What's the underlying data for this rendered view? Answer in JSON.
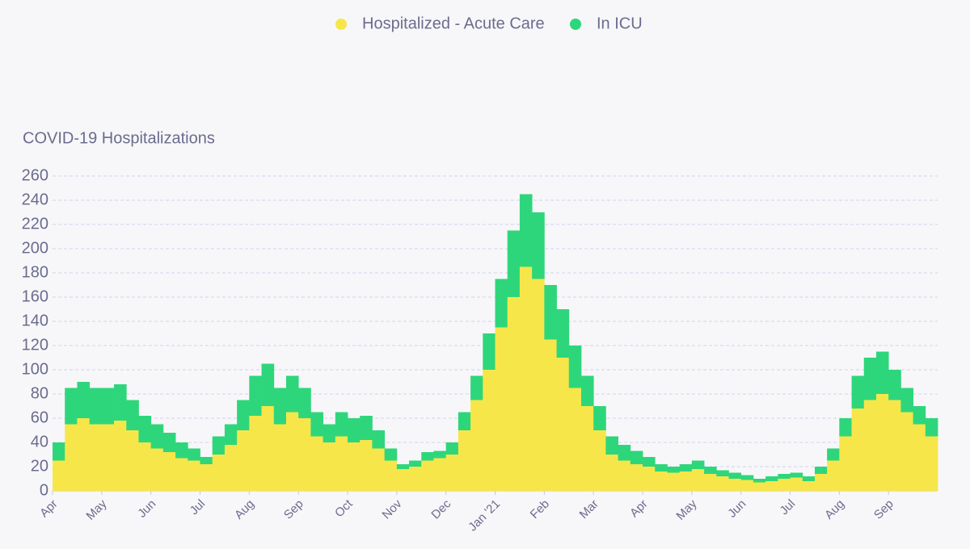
{
  "chart_data": {
    "type": "stacked_bar",
    "title": "COVID-19 Hospitalizations",
    "categories": [
      "Apr",
      null,
      null,
      null,
      "May",
      null,
      null,
      null,
      "Jun",
      null,
      null,
      null,
      "Jul",
      null,
      null,
      null,
      "Aug",
      null,
      null,
      null,
      "Sep",
      null,
      null,
      null,
      "Oct",
      null,
      null,
      null,
      "Nov",
      null,
      null,
      null,
      "Dec",
      null,
      null,
      null,
      "Jan '21",
      null,
      null,
      null,
      "Feb",
      null,
      null,
      null,
      "Mar",
      null,
      null,
      null,
      "Apr",
      null,
      null,
      null,
      "May",
      null,
      null,
      null,
      "Jun",
      null,
      null,
      null,
      "Jul",
      null,
      null,
      null,
      "Aug",
      null,
      null,
      null,
      "Sep",
      null,
      null,
      null
    ],
    "series": [
      {
        "name": "Hospitalized - Acute Care",
        "color": "#f7e64a",
        "values": [
          25,
          55,
          60,
          55,
          55,
          58,
          50,
          40,
          35,
          32,
          27,
          25,
          22,
          30,
          38,
          50,
          62,
          70,
          55,
          65,
          60,
          45,
          40,
          45,
          40,
          42,
          35,
          25,
          18,
          20,
          25,
          27,
          30,
          50,
          75,
          100,
          135,
          160,
          185,
          175,
          125,
          110,
          85,
          70,
          50,
          30,
          25,
          22,
          20,
          16,
          15,
          16,
          18,
          14,
          12,
          10,
          9,
          7,
          8,
          10,
          11,
          8,
          14,
          25,
          45,
          68,
          75,
          80,
          75,
          65,
          55,
          45
        ]
      },
      {
        "name": "In ICU",
        "color": "#2ed67b",
        "values": [
          15,
          30,
          30,
          30,
          30,
          30,
          25,
          22,
          20,
          16,
          13,
          10,
          6,
          15,
          17,
          25,
          33,
          35,
          30,
          30,
          25,
          20,
          15,
          20,
          20,
          20,
          15,
          10,
          4,
          5,
          7,
          6,
          10,
          15,
          20,
          30,
          40,
          55,
          60,
          55,
          45,
          40,
          35,
          25,
          20,
          15,
          13,
          11,
          8,
          6,
          5,
          6,
          7,
          6,
          5,
          5,
          4,
          3,
          4,
          4,
          4,
          4,
          6,
          10,
          15,
          27,
          35,
          35,
          25,
          20,
          15,
          15
        ]
      }
    ],
    "ylim": [
      0,
      260
    ],
    "yticks": [
      0,
      20,
      40,
      60,
      80,
      100,
      120,
      140,
      160,
      180,
      200,
      220,
      240,
      260
    ],
    "grid": true
  }
}
